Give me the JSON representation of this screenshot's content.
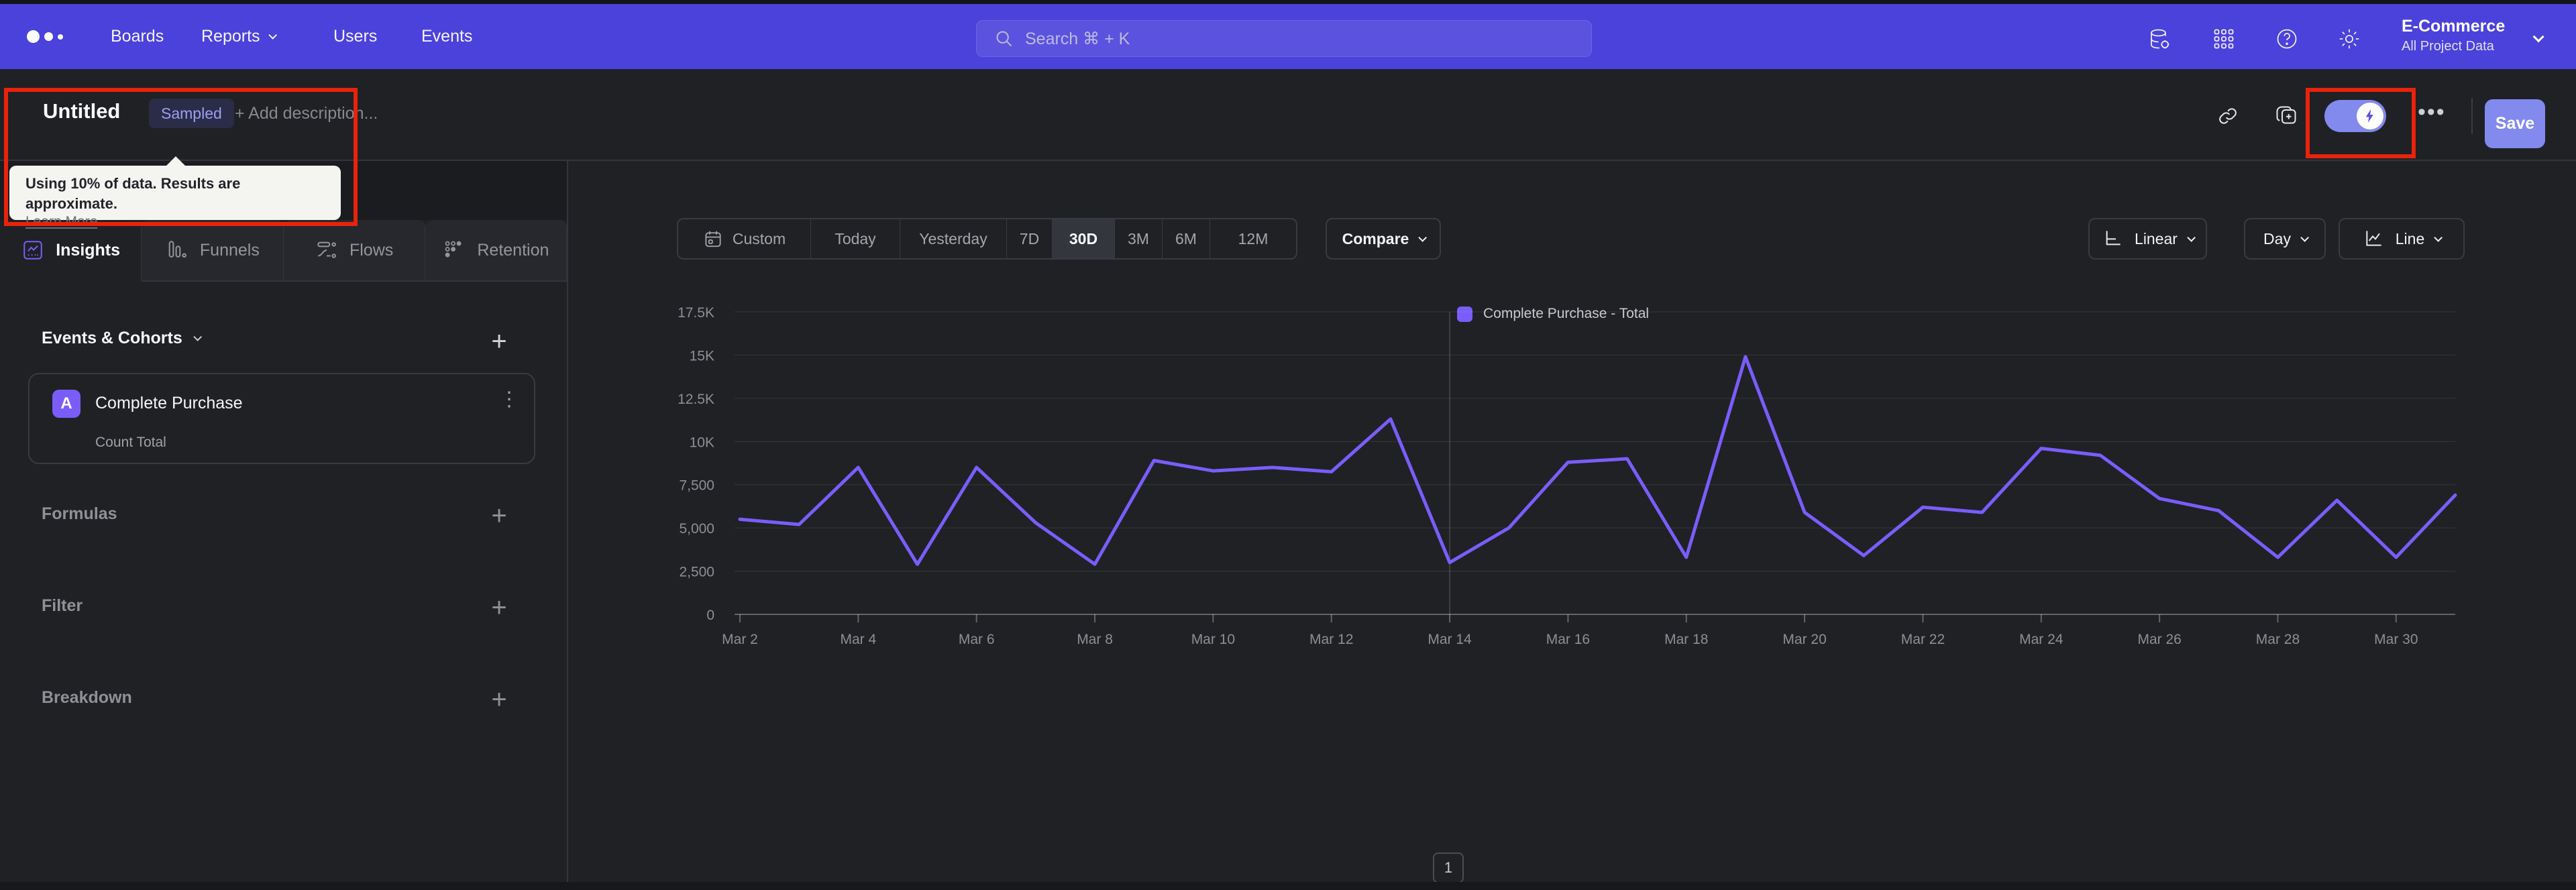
{
  "nav": {
    "links": [
      "Boards",
      "Reports",
      "Users",
      "Events"
    ],
    "search_placeholder": "Search  ⌘ + K",
    "project_name": "E-Commerce",
    "project_scope": "All Project Data"
  },
  "title_bar": {
    "title": "Untitled",
    "badge": "Sampled",
    "description_placeholder": "+ Add description...",
    "save_label": "Save"
  },
  "tooltip": {
    "text": "Using 10% of data. Results are approximate.",
    "link_label": "Learn More"
  },
  "tabs": [
    {
      "label": "Insights",
      "active": true
    },
    {
      "label": "Funnels",
      "active": false
    },
    {
      "label": "Flows",
      "active": false
    },
    {
      "label": "Retention",
      "active": false
    }
  ],
  "panel": {
    "events_heading": "Events & Cohorts",
    "event": {
      "badge": "A",
      "name": "Complete Purchase",
      "metric": "Count Total"
    },
    "sections": [
      "Formulas",
      "Filter",
      "Breakdown"
    ]
  },
  "controls": {
    "ranges": [
      "Custom",
      "Today",
      "Yesterday",
      "7D",
      "30D",
      "3M",
      "6M",
      "12M"
    ],
    "active_range": "30D",
    "compare_label": "Compare",
    "scale_label": "Linear",
    "interval_label": "Day",
    "chart_type_label": "Line"
  },
  "pagination_label": "1",
  "colors": {
    "nav": "#4B42DC",
    "accent": "#7A5DF9",
    "save": "#828AEE",
    "annotation_red": "#E8230C",
    "background": "#1F2125"
  },
  "chart_data": {
    "type": "line",
    "title": "",
    "x": [
      "Mar 2",
      "Mar 3",
      "Mar 4",
      "Mar 5",
      "Mar 6",
      "Mar 7",
      "Mar 8",
      "Mar 9",
      "Mar 10",
      "Mar 11",
      "Mar 12",
      "Mar 13",
      "Mar 14",
      "Mar 15",
      "Mar 16",
      "Mar 17",
      "Mar 18",
      "Mar 19",
      "Mar 20",
      "Mar 21",
      "Mar 22",
      "Mar 23",
      "Mar 24",
      "Mar 25",
      "Mar 26",
      "Mar 27",
      "Mar 28",
      "Mar 29",
      "Mar 30",
      "Mar 31"
    ],
    "x_tick_every": 2,
    "series": [
      {
        "name": "Complete Purchase - Total",
        "color": "#7A5DF9",
        "values": [
          5500,
          5200,
          8500,
          2900,
          8500,
          5300,
          2900,
          8900,
          8300,
          8500,
          8250,
          11300,
          3000,
          5000,
          8800,
          9000,
          3300,
          14900,
          5900,
          3400,
          6200,
          5900,
          9600,
          9200,
          6700,
          6000,
          3300,
          6600,
          3300,
          6900
        ]
      }
    ],
    "ylim": [
      0,
      17500
    ],
    "y_tick_labels": [
      "0",
      "2,500",
      "5,000",
      "7,500",
      "10K",
      "12.5K",
      "15K",
      "17.5K"
    ],
    "marker_x": "Mar 14",
    "grid": "horizontal",
    "legend_position": "top-center",
    "xlabel": "",
    "ylabel": ""
  }
}
